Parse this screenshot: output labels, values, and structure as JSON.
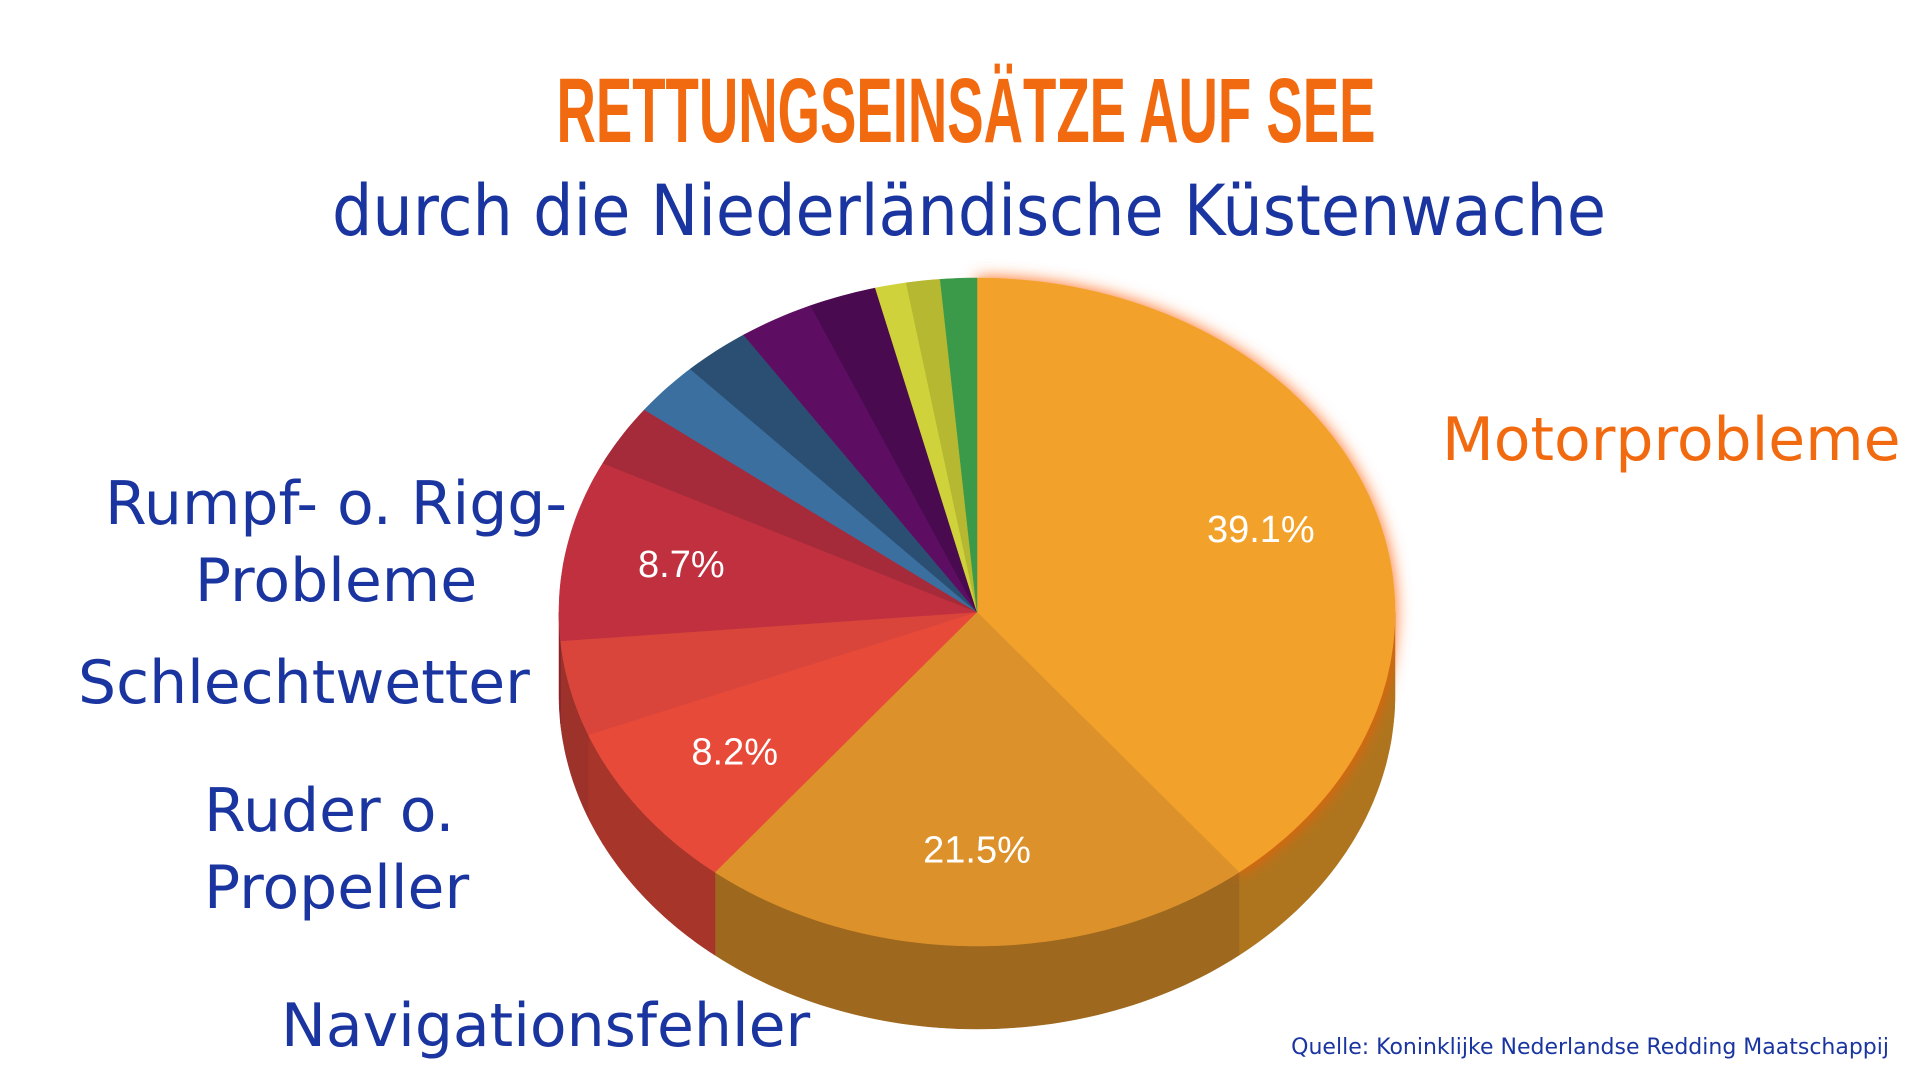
{
  "chart_data": {
    "type": "pie",
    "title": "RETTUNGSEINSÄTZE AUF SEE",
    "subtitle": "durch die Niederländische Küstenwache",
    "source": "Quelle: Koninklijke Nederlandse  Redding Maatschappij",
    "categories": [
      "Motorprobleme",
      "Navigationsfehler",
      "Ruder o.\nPropeller",
      "Schlechtwetter",
      "Rumpf- o. Rigg-\nProbleme",
      null,
      null,
      null,
      null,
      null,
      null,
      null,
      null
    ],
    "values": [
      39.1,
      21.5,
      8.2,
      4.6,
      8.7,
      3,
      2.6,
      2.6,
      2.9,
      2.6,
      1.2,
      1.3,
      1.4
    ],
    "value_labels": [
      "39.1%",
      "21.5%",
      "8.2%",
      null,
      "8.7%",
      null,
      null,
      null,
      null,
      null,
      null,
      null,
      null
    ],
    "colors": [
      "#f2a22a",
      "#dc912a",
      "#e84a3a",
      "#d9453a",
      "#c0303f",
      "#a52a3a",
      "#3a6fa0",
      "#2a4f72",
      "#5e0e62",
      "#4a0a50",
      "#cfd23a",
      "#b5b830",
      "#3a9a4a"
    ],
    "label_colors": [
      "#f26a10",
      "#1a35a0",
      "#1a35a0",
      "#1a35a0",
      "#1a35a0"
    ]
  }
}
